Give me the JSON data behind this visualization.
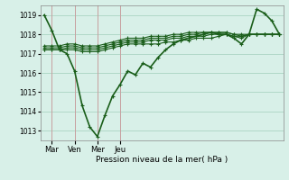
{
  "background_color": "#d8f0e8",
  "grid_color": "#b0d8c8",
  "line_color": "#1a5e1a",
  "xlabel": "Pression niveau de la mer( hPa )",
  "ylim": [
    1012.5,
    1019.5
  ],
  "yticks": [
    1013,
    1014,
    1015,
    1016,
    1017,
    1018,
    1019
  ],
  "xtick_labels": [
    "Mar",
    "Ven",
    "Mer",
    "Jeu"
  ],
  "xtick_positions": [
    1,
    4,
    7,
    10
  ],
  "vline_positions": [
    1,
    4,
    7,
    10
  ],
  "series": [
    [
      1019.0,
      1018.2,
      1017.2,
      1017.0,
      1016.1,
      1014.3,
      1013.2,
      1012.7,
      1013.8,
      1014.8,
      1015.4,
      1016.1,
      1015.9,
      1016.5,
      1016.3,
      1016.8,
      1017.2,
      1017.5,
      1017.7,
      1017.8,
      1017.9,
      1018.0,
      1018.1,
      1018.0,
      1018.0,
      1017.8,
      1017.5,
      1018.0,
      1019.3,
      1019.1,
      1018.7,
      1018.0
    ],
    [
      1017.2,
      1017.2,
      1017.2,
      1017.2,
      1017.2,
      1017.1,
      1017.1,
      1017.1,
      1017.2,
      1017.3,
      1017.4,
      1017.5,
      1017.5,
      1017.5,
      1017.5,
      1017.5,
      1017.6,
      1017.6,
      1017.7,
      1017.7,
      1017.8,
      1017.8,
      1017.8,
      1017.9,
      1018.0,
      1017.9,
      1017.8,
      1018.0,
      1018.0,
      1018.0,
      1018.0,
      1018.0
    ],
    [
      1017.2,
      1017.2,
      1017.2,
      1017.3,
      1017.3,
      1017.2,
      1017.2,
      1017.2,
      1017.3,
      1017.4,
      1017.5,
      1017.6,
      1017.6,
      1017.6,
      1017.7,
      1017.7,
      1017.7,
      1017.8,
      1017.8,
      1017.9,
      1017.9,
      1017.9,
      1018.0,
      1018.0,
      1018.0,
      1017.9,
      1017.9,
      1018.0,
      1018.0,
      1018.0,
      1018.0,
      1018.0
    ],
    [
      1017.3,
      1017.3,
      1017.3,
      1017.4,
      1017.4,
      1017.3,
      1017.3,
      1017.3,
      1017.4,
      1017.5,
      1017.6,
      1017.7,
      1017.7,
      1017.7,
      1017.8,
      1017.8,
      1017.8,
      1017.9,
      1017.9,
      1018.0,
      1018.0,
      1018.1,
      1018.1,
      1018.1,
      1018.1,
      1018.0,
      1017.9,
      1018.0,
      1018.0,
      1018.0,
      1018.0,
      1018.0
    ],
    [
      1017.4,
      1017.4,
      1017.4,
      1017.5,
      1017.5,
      1017.4,
      1017.4,
      1017.4,
      1017.5,
      1017.6,
      1017.7,
      1017.8,
      1017.8,
      1017.8,
      1017.9,
      1017.9,
      1017.9,
      1018.0,
      1018.0,
      1018.1,
      1018.1,
      1018.1,
      1018.1,
      1018.1,
      1018.1,
      1018.0,
      1018.0,
      1018.0,
      1018.0,
      1018.0,
      1018.0,
      1018.0
    ]
  ]
}
